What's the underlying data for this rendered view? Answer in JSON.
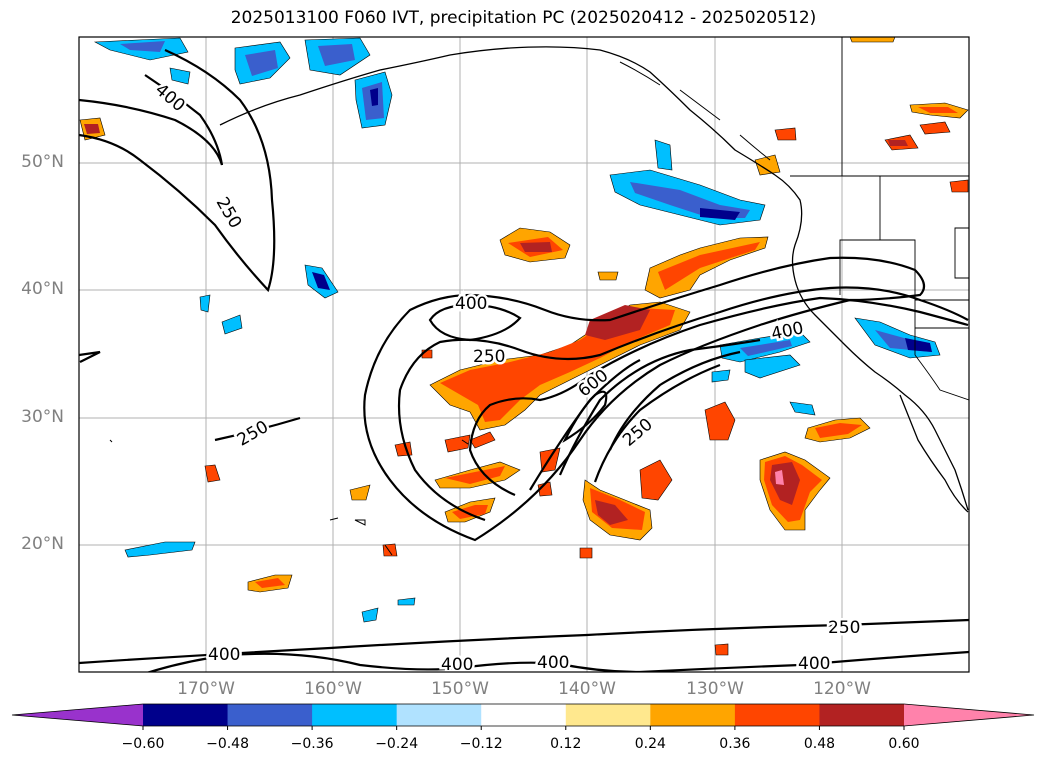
{
  "chart_data": {
    "type": "map-contour",
    "title": "2025013100 F060 IVT, precipitation PC (2025020412 - 2025020512)",
    "lat_ticks": [
      "50°N",
      "40°N",
      "30°N",
      "20°N"
    ],
    "lat_values": [
      50,
      40,
      30,
      20
    ],
    "lon_ticks": [
      "170°W",
      "160°W",
      "150°W",
      "140°W",
      "130°W",
      "120°W"
    ],
    "lon_values": [
      -170,
      -160,
      -150,
      -140,
      -130,
      -120
    ],
    "lon_range": [
      -180,
      -110
    ],
    "lat_range": [
      10,
      60
    ],
    "ivt_contour_labels": [
      "400",
      "250",
      "400",
      "250",
      "250",
      "600",
      "400",
      "250",
      "250",
      "400",
      "400",
      "400",
      "400"
    ],
    "ivt_levels": [
      250,
      400,
      600
    ],
    "colorbar": {
      "ticks": [
        "−0.60",
        "−0.48",
        "−0.36",
        "−0.24",
        "−0.12",
        "0.12",
        "0.24",
        "0.36",
        "0.48",
        "0.60"
      ],
      "tick_values": [
        -0.6,
        -0.48,
        -0.36,
        -0.24,
        -0.12,
        0.12,
        0.24,
        0.36,
        0.48,
        0.6
      ],
      "colors": [
        "#9932cc",
        "#00008b",
        "#3a5fcd",
        "#00bfff",
        "#b0e2ff",
        "#ffffff",
        "#ffe88e",
        "#ffa500",
        "#ff4500",
        "#b22222",
        "#ff82ab"
      ],
      "extend": "both"
    }
  }
}
